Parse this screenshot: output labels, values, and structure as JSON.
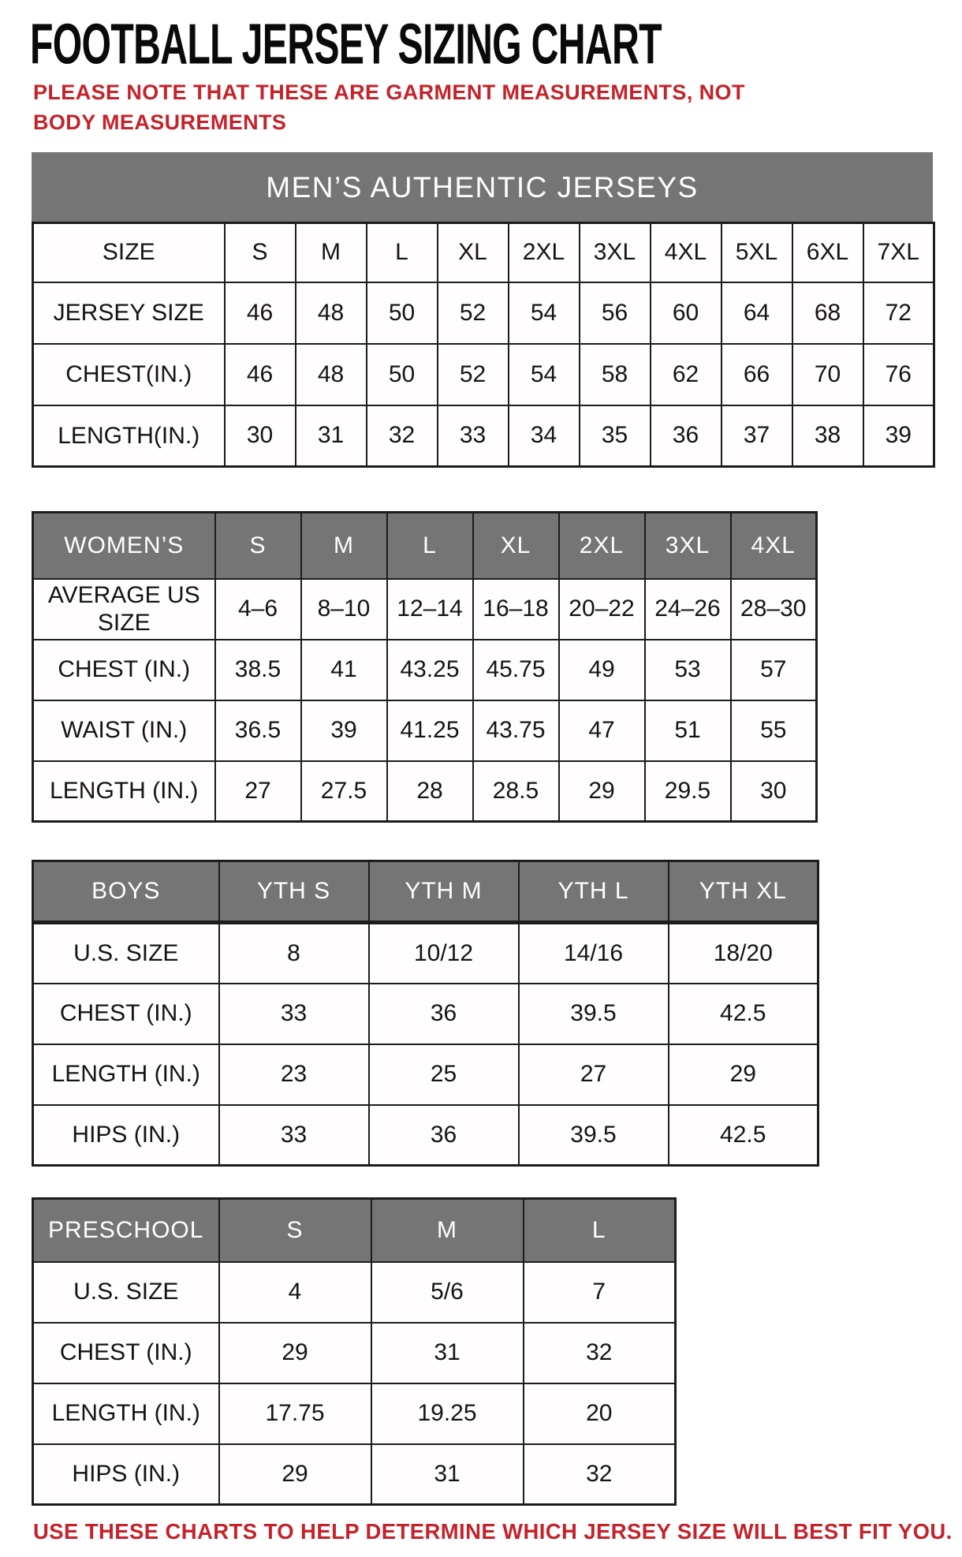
{
  "page": {
    "title": "FOOTBALL JERSEY SIZING CHART",
    "note": "PLEASE NOTE THAT THESE ARE GARMENT MEASUREMENTS, NOT BODY MEASUREMENTS",
    "footer": "USE THESE CHARTS TO HELP DETERMINE WHICH JERSEY SIZE WILL BEST FIT YOU.",
    "colors": {
      "accent_red": "#c4232b",
      "header_gray": "#757575"
    }
  },
  "tables": {
    "mens": {
      "banner": "MEN’S AUTHENTIC JERSEYS",
      "header": [
        "SIZE",
        "S",
        "M",
        "L",
        "XL",
        "2XL",
        "3XL",
        "4XL",
        "5XL",
        "6XL",
        "7XL"
      ],
      "rows": [
        {
          "label": "JERSEY SIZE",
          "values": [
            "46",
            "48",
            "50",
            "52",
            "54",
            "56",
            "60",
            "64",
            "68",
            "72"
          ]
        },
        {
          "label": "CHEST(IN.)",
          "values": [
            "46",
            "48",
            "50",
            "52",
            "54",
            "58",
            "62",
            "66",
            "70",
            "76"
          ]
        },
        {
          "label": "LENGTH(IN.)",
          "values": [
            "30",
            "31",
            "32",
            "33",
            "34",
            "35",
            "36",
            "37",
            "38",
            "39"
          ]
        }
      ]
    },
    "womens": {
      "header": [
        "WOMEN’S",
        "S",
        "M",
        "L",
        "XL",
        "2XL",
        "3XL",
        "4XL"
      ],
      "rows": [
        {
          "label": "AVERAGE US SIZE",
          "values": [
            "4–6",
            "8–10",
            "12–14",
            "16–18",
            "20–22",
            "24–26",
            "28–30"
          ]
        },
        {
          "label": "CHEST (IN.)",
          "values": [
            "38.5",
            "41",
            "43.25",
            "45.75",
            "49",
            "53",
            "57"
          ]
        },
        {
          "label": "WAIST (IN.)",
          "values": [
            "36.5",
            "39",
            "41.25",
            "43.75",
            "47",
            "51",
            "55"
          ]
        },
        {
          "label": "LENGTH (IN.)",
          "values": [
            "27",
            "27.5",
            "28",
            "28.5",
            "29",
            "29.5",
            "30"
          ]
        }
      ]
    },
    "boys": {
      "header": [
        "BOYS",
        "YTH S",
        "YTH M",
        "YTH L",
        "YTH XL"
      ],
      "rows": [
        {
          "label": "U.S. SIZE",
          "values": [
            "8",
            "10/12",
            "14/16",
            "18/20"
          ]
        },
        {
          "label": "CHEST (IN.)",
          "values": [
            "33",
            "36",
            "39.5",
            "42.5"
          ]
        },
        {
          "label": "LENGTH (IN.)",
          "values": [
            "23",
            "25",
            "27",
            "29"
          ]
        },
        {
          "label": "HIPS (IN.)",
          "values": [
            "33",
            "36",
            "39.5",
            "42.5"
          ]
        }
      ]
    },
    "preschool": {
      "header": [
        "PRESCHOOL",
        "S",
        "M",
        "L"
      ],
      "rows": [
        {
          "label": "U.S. SIZE",
          "values": [
            "4",
            "5/6",
            "7"
          ]
        },
        {
          "label": "CHEST (IN.)",
          "values": [
            "29",
            "31",
            "32"
          ]
        },
        {
          "label": "LENGTH (IN.)",
          "values": [
            "17.75",
            "19.25",
            "20"
          ]
        },
        {
          "label": "HIPS (IN.)",
          "values": [
            "29",
            "31",
            "32"
          ]
        }
      ]
    }
  }
}
